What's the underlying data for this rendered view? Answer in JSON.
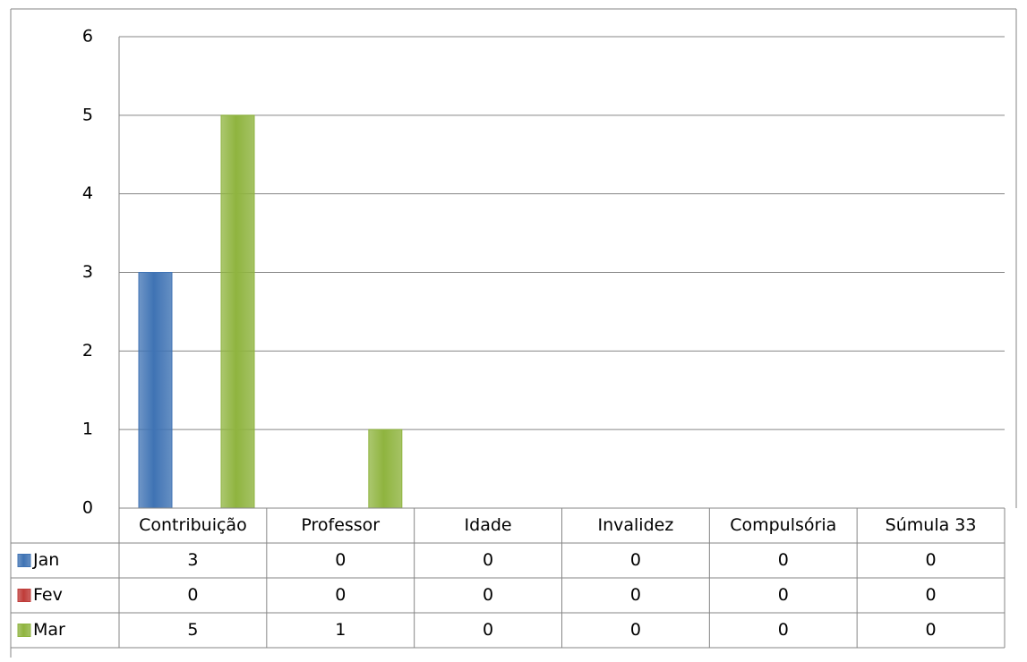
{
  "chart_data": {
    "type": "bar",
    "categories": [
      "Contribuição",
      "Professor",
      "Idade",
      "Invalidez",
      "Compulsória",
      "Súmula 33"
    ],
    "series": [
      {
        "name": "Jan",
        "color": "#3f73b4",
        "values": [
          3,
          0,
          0,
          0,
          0,
          0
        ]
      },
      {
        "name": "Fev",
        "color": "#bf3c39",
        "values": [
          0,
          0,
          0,
          0,
          0,
          0
        ]
      },
      {
        "name": "Mar",
        "color": "#8fb43f",
        "values": [
          5,
          1,
          0,
          0,
          0,
          0
        ]
      }
    ],
    "ylim": [
      0,
      6
    ],
    "yticks": [
      0,
      1,
      2,
      3,
      4,
      5,
      6
    ],
    "grid": true,
    "data_table": true
  }
}
